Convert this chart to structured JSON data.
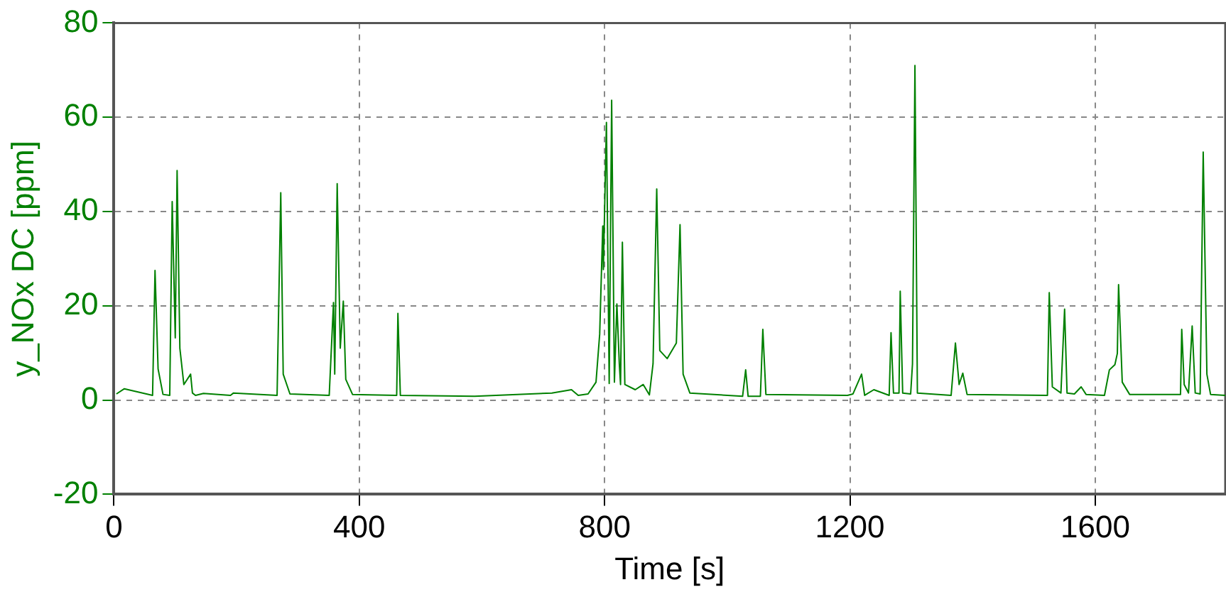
{
  "chart_data": {
    "type": "line",
    "xlabel": "Time [s]",
    "ylabel": "y_NOx DC [ppm]",
    "xlim": [
      0,
      1812
    ],
    "ylim": [
      -20,
      80
    ],
    "xticks": [
      0,
      400,
      800,
      1200,
      1600
    ],
    "yticks": [
      -20,
      0,
      20,
      40,
      60,
      80
    ],
    "grid": true,
    "legend": false,
    "marker": "none",
    "line_style": "solid",
    "series": [
      {
        "color": "#008000",
        "x": [
          4,
          17,
          63,
          67,
          72,
          80,
          91,
          95,
          100,
          103,
          107.5,
          114,
          125,
          128,
          133,
          146,
          190,
          195,
          266,
          272,
          276,
          287,
          351,
          358,
          360,
          364,
          369,
          374,
          378,
          389,
          461,
          463,
          467,
          588,
          714,
          746,
          757,
          773,
          786,
          792,
          797,
          798,
          803,
          807.5,
          811.5,
          816,
          820,
          824,
          826,
          829,
          833,
          850,
          863,
          873,
          879,
          885,
          890,
          902,
          917,
          923,
          928,
          939,
          1025,
          1030,
          1034,
          1054,
          1058,
          1063,
          1196,
          1205,
          1219,
          1224,
          1239,
          1264,
          1267,
          1271,
          1280,
          1282,
          1286,
          1299,
          1302,
          1306,
          1310,
          1365,
          1372,
          1378,
          1384,
          1391,
          1522,
          1525,
          1530,
          1544,
          1550,
          1554,
          1566,
          1577,
          1585,
          1615,
          1623,
          1632,
          1636,
          1638,
          1644,
          1656,
          1725,
          1739,
          1741,
          1745,
          1752,
          1758,
          1763,
          1771,
          1776,
          1782,
          1788,
          1812
        ],
        "values": [
          1.3,
          2.4,
          1,
          27.5,
          6.6,
          1.2,
          1,
          42.1,
          13.2,
          48.7,
          11,
          3.3,
          5.5,
          1.5,
          1,
          1.4,
          1,
          1.5,
          1,
          44,
          5.5,
          1.3,
          1,
          20.7,
          5.5,
          45.9,
          11,
          21,
          4.4,
          1.2,
          1,
          18.4,
          1,
          0.8,
          1.5,
          2.2,
          1,
          1.3,
          3.8,
          14,
          36.9,
          27.7,
          58.9,
          3.5,
          63.6,
          3.8,
          20.4,
          7.7,
          3.3,
          33.5,
          3.3,
          2.2,
          3.3,
          1.1,
          7.7,
          44.8,
          10.5,
          8.8,
          12.1,
          37.2,
          5.5,
          1.5,
          0.8,
          6.4,
          0.8,
          0.8,
          15,
          1.2,
          1,
          1.3,
          5.5,
          1,
          2.2,
          1,
          14.3,
          1.5,
          1.5,
          23.1,
          1.5,
          1.3,
          7.7,
          71,
          1.5,
          1,
          12.1,
          3.3,
          5.7,
          1.2,
          1,
          22.8,
          2.8,
          1.5,
          19.3,
          1.5,
          1.3,
          2.8,
          1.2,
          1,
          6.4,
          7.5,
          9.9,
          24.5,
          3.8,
          1.2,
          1.2,
          1.2,
          15,
          3.3,
          1.5,
          15.7,
          1.5,
          1.3,
          52.6,
          5.5,
          1.2,
          1
        ]
      }
    ]
  }
}
